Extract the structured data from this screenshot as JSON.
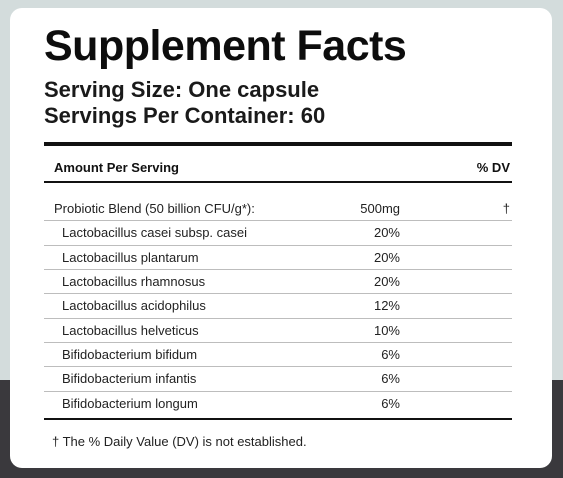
{
  "label": {
    "title": "Supplement Facts",
    "serving_size": "Serving Size: One capsule",
    "servings_per_container": "Servings Per Container: 60",
    "header_amount": "Amount Per Serving",
    "header_dv": "% DV",
    "blend": {
      "name": "Probiotic Blend (50 billion CFU/g*):",
      "amount": "500mg",
      "dv": "†"
    },
    "ingredients": [
      {
        "name": "Lactobacillus casei subsp. casei",
        "amount": "20%"
      },
      {
        "name": "Lactobacillus plantarum",
        "amount": "20%"
      },
      {
        "name": "Lactobacillus rhamnosus",
        "amount": "20%"
      },
      {
        "name": "Lactobacillus acidophilus",
        "amount": "12%"
      },
      {
        "name": "Lactobacillus helveticus",
        "amount": "10%"
      },
      {
        "name": "Bifidobacterium bifidum",
        "amount": "6%"
      },
      {
        "name": "Bifidobacterium infantis",
        "amount": "6%"
      },
      {
        "name": "Bifidobacterium longum",
        "amount": "6%"
      }
    ],
    "footnote": "† The % Daily Value (DV) is not established."
  }
}
